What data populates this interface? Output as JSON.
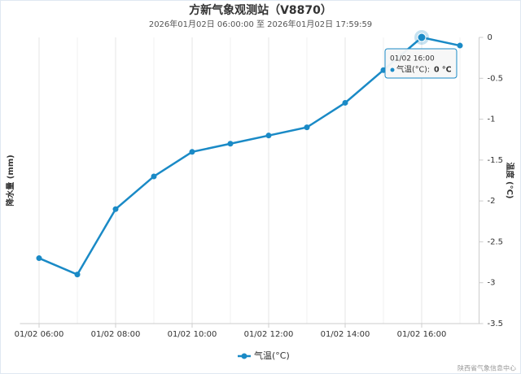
{
  "chart_data": {
    "type": "line",
    "title": "方新气象观测站（V8870）",
    "subtitle": "2026年01月02日 06:00:00 至 2026年01月02日 17:59:59",
    "y_left_title": "降水量 (mm)",
    "y_right_title": "温度 (°C)",
    "categories": [
      "01/02 06:00",
      null,
      "01/02 08:00",
      null,
      "01/02 10:00",
      null,
      "01/02 12:00",
      null,
      "01/02 14:00",
      null,
      "01/02 16:00",
      null
    ],
    "series": [
      {
        "name": "气温(°C)",
        "color": "#1a8ac6",
        "axis": "y2",
        "values": [
          -2.7,
          -2.9,
          -2.1,
          -1.7,
          -1.4,
          -1.3,
          -1.2,
          -1.1,
          -0.8,
          -0.4,
          0,
          -0.1
        ]
      }
    ],
    "y2lim": [
      -3.5,
      0
    ],
    "y2ticks": [
      0,
      -0.5,
      -1,
      -1.5,
      -2,
      -2.5,
      -3,
      -3.5
    ],
    "grid": true,
    "legend": "bottom",
    "tooltip": {
      "header": "01/02 16:00",
      "label": "气温(°C):",
      "value_label": "0 °C"
    },
    "credits": "陕西省气象信息中心"
  }
}
